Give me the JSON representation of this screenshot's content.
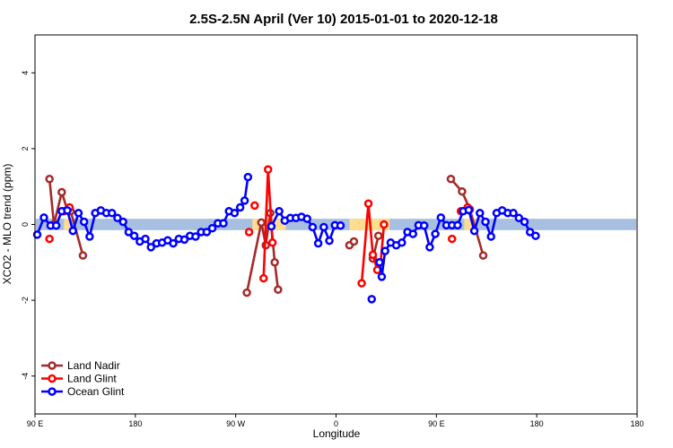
{
  "chart_data": {
    "type": "line",
    "title": "2.5S-2.5N April (Ver 10)   2015-01-01 to 2020-12-18",
    "xlabel": "Longitude",
    "ylabel": "XCO2 - MLO trend (ppm)",
    "xlim": [
      0,
      540
    ],
    "ylim": [
      -5,
      5
    ],
    "x_ticks": [
      {
        "value": 0,
        "label": "90 E"
      },
      {
        "value": 90,
        "label": "180"
      },
      {
        "value": 180,
        "label": "90 W"
      },
      {
        "value": 270,
        "label": "0"
      },
      {
        "value": 360,
        "label": "90 E"
      },
      {
        "value": 450,
        "label": "180"
      }
    ],
    "y_ticks": [
      -4,
      -2,
      0,
      2,
      4
    ],
    "reference_band": {
      "y_min": -0.15,
      "y_max": 0.15,
      "color": "#a7bfe0"
    },
    "highlight_bands": [
      {
        "x_start": 26,
        "x_end": 32,
        "color": "#fedd8e"
      },
      {
        "x_start": 195,
        "x_end": 225,
        "color": "#fedd8e"
      },
      {
        "x_start": 282,
        "x_end": 318,
        "color": "#fedd8e"
      },
      {
        "x_start": 385,
        "x_end": 395,
        "color": "#fedd8e"
      }
    ],
    "legend_position": "bottom-left",
    "series": [
      {
        "name": "Land Nadir",
        "color": "#a52a2a",
        "segments": [
          [
            [
              13,
              1.2
            ],
            [
              17,
              0.0
            ],
            [
              24,
              0.85
            ],
            [
              29,
              0.38
            ],
            [
              32,
              0.35
            ],
            [
              43,
              -0.82
            ]
          ],
          [
            [
              190,
              -1.8
            ],
            [
              203,
              0.05
            ],
            [
              207,
              -0.55
            ],
            [
              211,
              0.3
            ],
            [
              215,
              -1.0
            ],
            [
              218,
              -1.72
            ]
          ],
          [
            [
              282,
              -0.55
            ],
            [
              286,
              -0.45
            ]
          ],
          [
            [
              303,
              -0.9
            ],
            [
              308,
              -0.3
            ]
          ],
          [
            [
              373,
              1.2
            ],
            [
              383,
              0.87
            ],
            [
              390,
              0.4
            ],
            [
              402,
              -0.82
            ]
          ]
        ]
      },
      {
        "name": "Land Glint",
        "color": "#ff0000",
        "segments": [
          [
            [
              13,
              -0.38
            ]
          ],
          [
            [
              26,
              0.35
            ],
            [
              31,
              0.45
            ]
          ],
          [
            [
              192,
              -0.2
            ]
          ],
          [
            [
              197,
              0.5
            ]
          ],
          [
            [
              205,
              -1.42
            ],
            [
              209,
              1.45
            ],
            [
              213,
              -0.48
            ]
          ],
          [
            [
              293,
              -1.55
            ],
            [
              299,
              0.55
            ],
            [
              303,
              -0.8
            ],
            [
              307,
              -1.2
            ],
            [
              310,
              -1.0
            ],
            [
              313,
              0.0
            ]
          ],
          [
            [
              374,
              -0.38
            ]
          ],
          [
            [
              382,
              0.35
            ],
            [
              388,
              0.45
            ]
          ]
        ]
      },
      {
        "name": "Ocean Glint",
        "color": "#0000ff",
        "segments": [
          [
            [
              2,
              -0.27
            ],
            [
              8,
              0.18
            ],
            [
              14,
              -0.03
            ],
            [
              19,
              -0.03
            ],
            [
              24,
              0.35
            ],
            [
              29,
              0.37
            ],
            [
              34,
              -0.17
            ],
            [
              39,
              0.3
            ],
            [
              44,
              0.07
            ],
            [
              49,
              -0.32
            ],
            [
              54,
              0.3
            ],
            [
              59,
              0.37
            ],
            [
              64,
              0.3
            ],
            [
              69,
              0.3
            ],
            [
              74,
              0.17
            ],
            [
              79,
              0.07
            ],
            [
              84,
              -0.2
            ],
            [
              89,
              -0.3
            ],
            [
              94,
              -0.45
            ],
            [
              99,
              -0.38
            ],
            [
              104,
              -0.6
            ],
            [
              109,
              -0.5
            ],
            [
              114,
              -0.48
            ],
            [
              119,
              -0.42
            ],
            [
              124,
              -0.5
            ],
            [
              129,
              -0.38
            ],
            [
              134,
              -0.4
            ],
            [
              139,
              -0.3
            ],
            [
              144,
              -0.32
            ],
            [
              149,
              -0.2
            ],
            [
              154,
              -0.2
            ],
            [
              159,
              -0.1
            ],
            [
              164,
              0.03
            ],
            [
              169,
              0.03
            ],
            [
              174,
              0.35
            ],
            [
              179,
              0.3
            ],
            [
              184,
              0.45
            ],
            [
              188,
              0.63
            ],
            [
              191,
              1.25
            ]
          ],
          [
            [
              212,
              -0.05
            ],
            [
              219,
              0.35
            ],
            [
              224,
              0.1
            ],
            [
              229,
              0.17
            ],
            [
              234,
              0.17
            ],
            [
              239,
              0.2
            ],
            [
              244,
              0.15
            ],
            [
              249,
              -0.07
            ],
            [
              254,
              -0.5
            ],
            [
              259,
              -0.07
            ],
            [
              264,
              -0.43
            ],
            [
              269,
              -0.02
            ],
            [
              274,
              -0.03
            ]
          ],
          [
            [
              302,
              -1.97
            ]
          ],
          [
            [
              309,
              -1.0
            ],
            [
              311,
              -1.38
            ],
            [
              314,
              -0.7
            ],
            [
              319,
              -0.48
            ],
            [
              324,
              -0.55
            ],
            [
              329,
              -0.48
            ],
            [
              334,
              -0.2
            ],
            [
              339,
              -0.25
            ],
            [
              344,
              -0.02
            ],
            [
              349,
              -0.03
            ],
            [
              354,
              -0.6
            ],
            [
              359,
              -0.25
            ],
            [
              364,
              0.18
            ],
            [
              369,
              -0.02
            ],
            [
              374,
              -0.02
            ],
            [
              379,
              -0.02
            ],
            [
              384,
              0.35
            ],
            [
              389,
              0.38
            ],
            [
              394,
              -0.17
            ],
            [
              399,
              0.3
            ],
            [
              404,
              0.07
            ],
            [
              409,
              -0.32
            ],
            [
              414,
              0.3
            ],
            [
              419,
              0.37
            ],
            [
              424,
              0.3
            ],
            [
              429,
              0.3
            ],
            [
              434,
              0.17
            ],
            [
              439,
              0.07
            ],
            [
              444,
              -0.2
            ],
            [
              449,
              -0.3
            ]
          ]
        ]
      }
    ]
  }
}
